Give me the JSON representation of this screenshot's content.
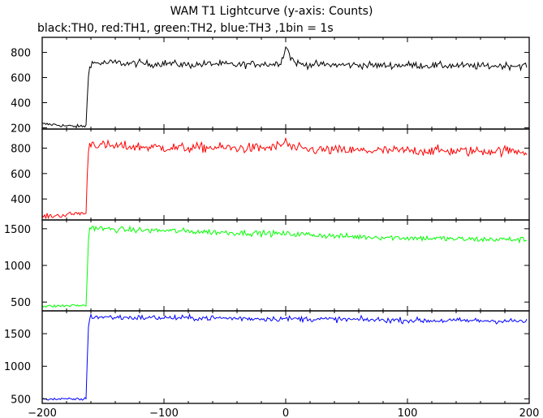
{
  "page": {
    "title": "WAM T1 Lightcurve (y-axis: Counts)",
    "subtitle": "black:TH0, red:TH1, green:TH2, blue:TH3 ,1bin = 1s"
  },
  "chart_data": {
    "type": "line",
    "title": "WAM T1 Lightcurve (y-axis: Counts)",
    "subtitle": "black:TH0, red:TH1, green:TH2, blue:TH3 ,1bin = 1s",
    "xlabel": "",
    "xlim": [
      -200,
      200
    ],
    "x_ticks": [
      -200,
      -100,
      0,
      100,
      200
    ],
    "x_tick_labels": [
      "−200",
      "−100",
      "0",
      "100",
      "200"
    ],
    "grid": false,
    "panels": [
      {
        "series_name": "TH0",
        "color": "#000000",
        "ylabel": "",
        "ylim": [
          190,
          920
        ],
        "y_ticks": [
          200,
          400,
          600,
          800
        ],
        "y_tick_labels": [
          "200",
          "400",
          "600",
          "800"
        ],
        "x": [
          -200,
          -190,
          -180,
          -170,
          -164,
          -163,
          -162,
          -161,
          -160,
          -150,
          -140,
          -130,
          -120,
          -110,
          -100,
          -80,
          -60,
          -40,
          -20,
          -10,
          -5,
          -2,
          0,
          2,
          4,
          8,
          15,
          20,
          40,
          60,
          80,
          100,
          120,
          140,
          160,
          180,
          198
        ],
        "y": [
          230,
          225,
          215,
          210,
          215,
          420,
          610,
          700,
          715,
          715,
          720,
          710,
          715,
          705,
          715,
          700,
          710,
          700,
          710,
          705,
          720,
          760,
          860,
          810,
          760,
          720,
          700,
          705,
          700,
          700,
          695,
          700,
          695,
          695,
          690,
          695,
          695
        ],
        "noise": 20
      },
      {
        "series_name": "TH1",
        "color": "#ff0000",
        "ylabel": "",
        "ylim": [
          235,
          950
        ],
        "y_ticks": [
          400,
          600,
          800
        ],
        "y_tick_labels": [
          "400",
          "600",
          "800"
        ],
        "x": [
          -200,
          -190,
          -180,
          -170,
          -164,
          -163,
          -162,
          -161,
          -160,
          -150,
          -140,
          -120,
          -100,
          -80,
          -60,
          -40,
          -20,
          -10,
          -2,
          0,
          2,
          6,
          15,
          30,
          60,
          90,
          120,
          150,
          180,
          198
        ],
        "y": [
          260,
          268,
          275,
          290,
          285,
          560,
          800,
          840,
          840,
          820,
          815,
          810,
          805,
          800,
          805,
          800,
          800,
          805,
          830,
          870,
          820,
          800,
          790,
          785,
          780,
          780,
          780,
          775,
          780,
          775
        ],
        "noise": 28
      },
      {
        "series_name": "TH2",
        "color": "#00ff00",
        "ylabel": "",
        "ylim": [
          380,
          1620
        ],
        "y_ticks": [
          500,
          1000,
          1500
        ],
        "y_tick_labels": [
          "500",
          "1000",
          "1500"
        ],
        "x": [
          -200,
          -190,
          -180,
          -170,
          -164,
          -163,
          -162,
          -161,
          -160,
          -150,
          -140,
          -120,
          -100,
          -80,
          -60,
          -40,
          -20,
          0,
          20,
          40,
          60,
          80,
          100,
          120,
          140,
          160,
          180,
          198
        ],
        "y": [
          440,
          445,
          450,
          455,
          450,
          900,
          1350,
          1510,
          1520,
          1500,
          1490,
          1480,
          1475,
          1465,
          1455,
          1445,
          1440,
          1430,
          1420,
          1400,
          1390,
          1385,
          1375,
          1370,
          1360,
          1355,
          1355,
          1350
        ],
        "noise": 28
      },
      {
        "series_name": "TH3",
        "color": "#0000ff",
        "ylabel": "",
        "ylim": [
          430,
          1850
        ],
        "y_ticks": [
          500,
          1000,
          1500
        ],
        "y_tick_labels": [
          "500",
          "1000",
          "1500"
        ],
        "x": [
          -200,
          -190,
          -180,
          -170,
          -164,
          -163,
          -162,
          -161,
          -160,
          -150,
          -140,
          -120,
          -100,
          -80,
          -60,
          -40,
          -20,
          0,
          20,
          40,
          60,
          80,
          100,
          120,
          140,
          160,
          180,
          198
        ],
        "y": [
          500,
          495,
          495,
          495,
          500,
          1100,
          1600,
          1750,
          1760,
          1755,
          1750,
          1745,
          1745,
          1740,
          1740,
          1735,
          1730,
          1730,
          1725,
          1720,
          1715,
          1710,
          1705,
          1700,
          1700,
          1700,
          1695,
          1690
        ],
        "noise": 30
      }
    ]
  }
}
